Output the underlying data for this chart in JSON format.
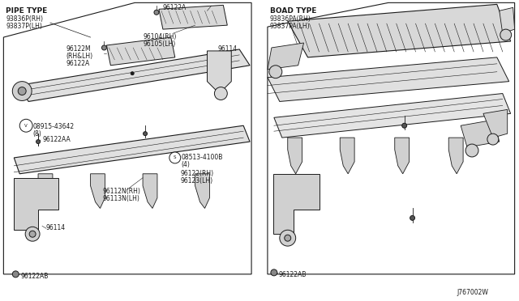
{
  "fig_width": 6.4,
  "fig_height": 3.72,
  "dpi": 100,
  "bg_color": "#ffffff",
  "line_color": "#1a1a1a",
  "diagram_code": "J767002W",
  "left_header": "PIPE TYPE",
  "left_sub1": "93836P(RH)",
  "left_sub2": "93837P(LH)",
  "right_header": "BOAD TYPE",
  "right_sub1": "93836PA(RH)",
  "right_sub2": "93837PA(LH)",
  "label_fontsize": 5.5,
  "header_fontsize": 6.5
}
